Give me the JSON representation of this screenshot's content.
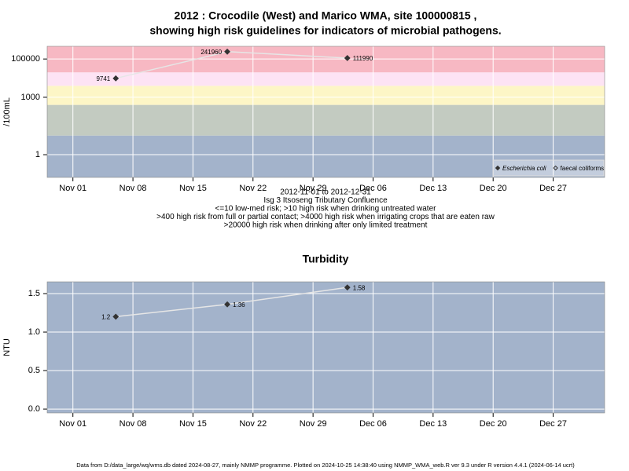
{
  "chart_data": [
    {
      "type": "line",
      "title": [
        "2012 : Crocodile (West) and Marico WMA, site 100000815 ,",
        "showing high risk guidelines for indicators of microbial pathogens."
      ],
      "ylabel": "/100mL",
      "caption": [
        "2012-11-01 to 2012-12-31",
        "Isg 3 Itsoseng Tributary Confluence",
        "<=10 low-med risk; >10 high risk when drinking untreated water",
        ">400 high risk from full or partial contact; >4000 high risk when irrigating crops that are eaten raw",
        ">20000 high risk when drinking after only limited treatment"
      ],
      "x": [
        "2012-11-06",
        "2012-11-19",
        "2012-12-03"
      ],
      "series": [
        {
          "name": "Escherichia coli",
          "color": "#333333",
          "marker": "filled-diamond",
          "values": [
            9741,
            241960,
            111990
          ]
        },
        {
          "name": "faecal coliforms",
          "color": "#333333",
          "marker": "open-diamond",
          "values": [
            null,
            null,
            null
          ]
        }
      ],
      "line_color": "#e6e6e6",
      "log_y": true,
      "ylim": [
        0.065,
        460000
      ],
      "yticks": [
        1,
        1000,
        100000
      ],
      "risk_thresholds": [
        10,
        400,
        4000,
        20000
      ],
      "band_colors": [
        "#a3b3cb",
        "#c3cbc1",
        "#fdf6c6",
        "#fde3f4",
        "#f7b8c3"
      ],
      "xlim": [
        "2012-10-29",
        "2013-01-02"
      ],
      "xticks": [
        {
          "value": "2012-11-01",
          "label": "Nov 01"
        },
        {
          "value": "2012-11-08",
          "label": "Nov 08"
        },
        {
          "value": "2012-11-15",
          "label": "Nov 15"
        },
        {
          "value": "2012-11-22",
          "label": "Nov 22"
        },
        {
          "value": "2012-11-29",
          "label": "Nov 29"
        },
        {
          "value": "2012-12-06",
          "label": "Dec 06"
        },
        {
          "value": "2012-12-13",
          "label": "Dec 13"
        },
        {
          "value": "2012-12-20",
          "label": "Dec 20"
        },
        {
          "value": "2012-12-27",
          "label": "Dec 27"
        }
      ],
      "grid": true,
      "legend": "lower right"
    },
    {
      "type": "line",
      "title": [
        "Turbidity"
      ],
      "ylabel": "NTU",
      "x": [
        "2012-11-06",
        "2012-11-19",
        "2012-12-03"
      ],
      "series": [
        {
          "color": "#333333",
          "marker": "filled-diamond",
          "values": [
            1.2,
            1.36,
            1.58
          ]
        }
      ],
      "line_color": "#e6e6e6",
      "log_y": false,
      "background": "#a3b3cb",
      "ylim": [
        -0.05,
        1.653
      ],
      "yticks": [
        {
          "value": 0,
          "label": "0.0"
        },
        0.5,
        {
          "value": 1,
          "label": "1.0"
        },
        1.5
      ],
      "xlim": [
        "2012-10-29",
        "2013-01-02"
      ],
      "xticks": [
        {
          "value": "2012-11-01",
          "label": "Nov 01"
        },
        {
          "value": "2012-11-08",
          "label": "Nov 08"
        },
        {
          "value": "2012-11-15",
          "label": "Nov 15"
        },
        {
          "value": "2012-11-22",
          "label": "Nov 22"
        },
        {
          "value": "2012-11-29",
          "label": "Nov 29"
        },
        {
          "value": "2012-12-06",
          "label": "Dec 06"
        },
        {
          "value": "2012-12-13",
          "label": "Dec 13"
        },
        {
          "value": "2012-12-20",
          "label": "Dec 20"
        },
        {
          "value": "2012-12-27",
          "label": "Dec 27"
        }
      ],
      "grid": true
    }
  ],
  "footer": "Data from D:/data_large/wq/wms.db dated 2024-08-27, mainly NMMP programme. Plotted on 2024-10-25 14:38:40 using NMMP_WMA_web.R ver 9.3 under R version 4.4.1 (2024-06-14 ucrt)"
}
